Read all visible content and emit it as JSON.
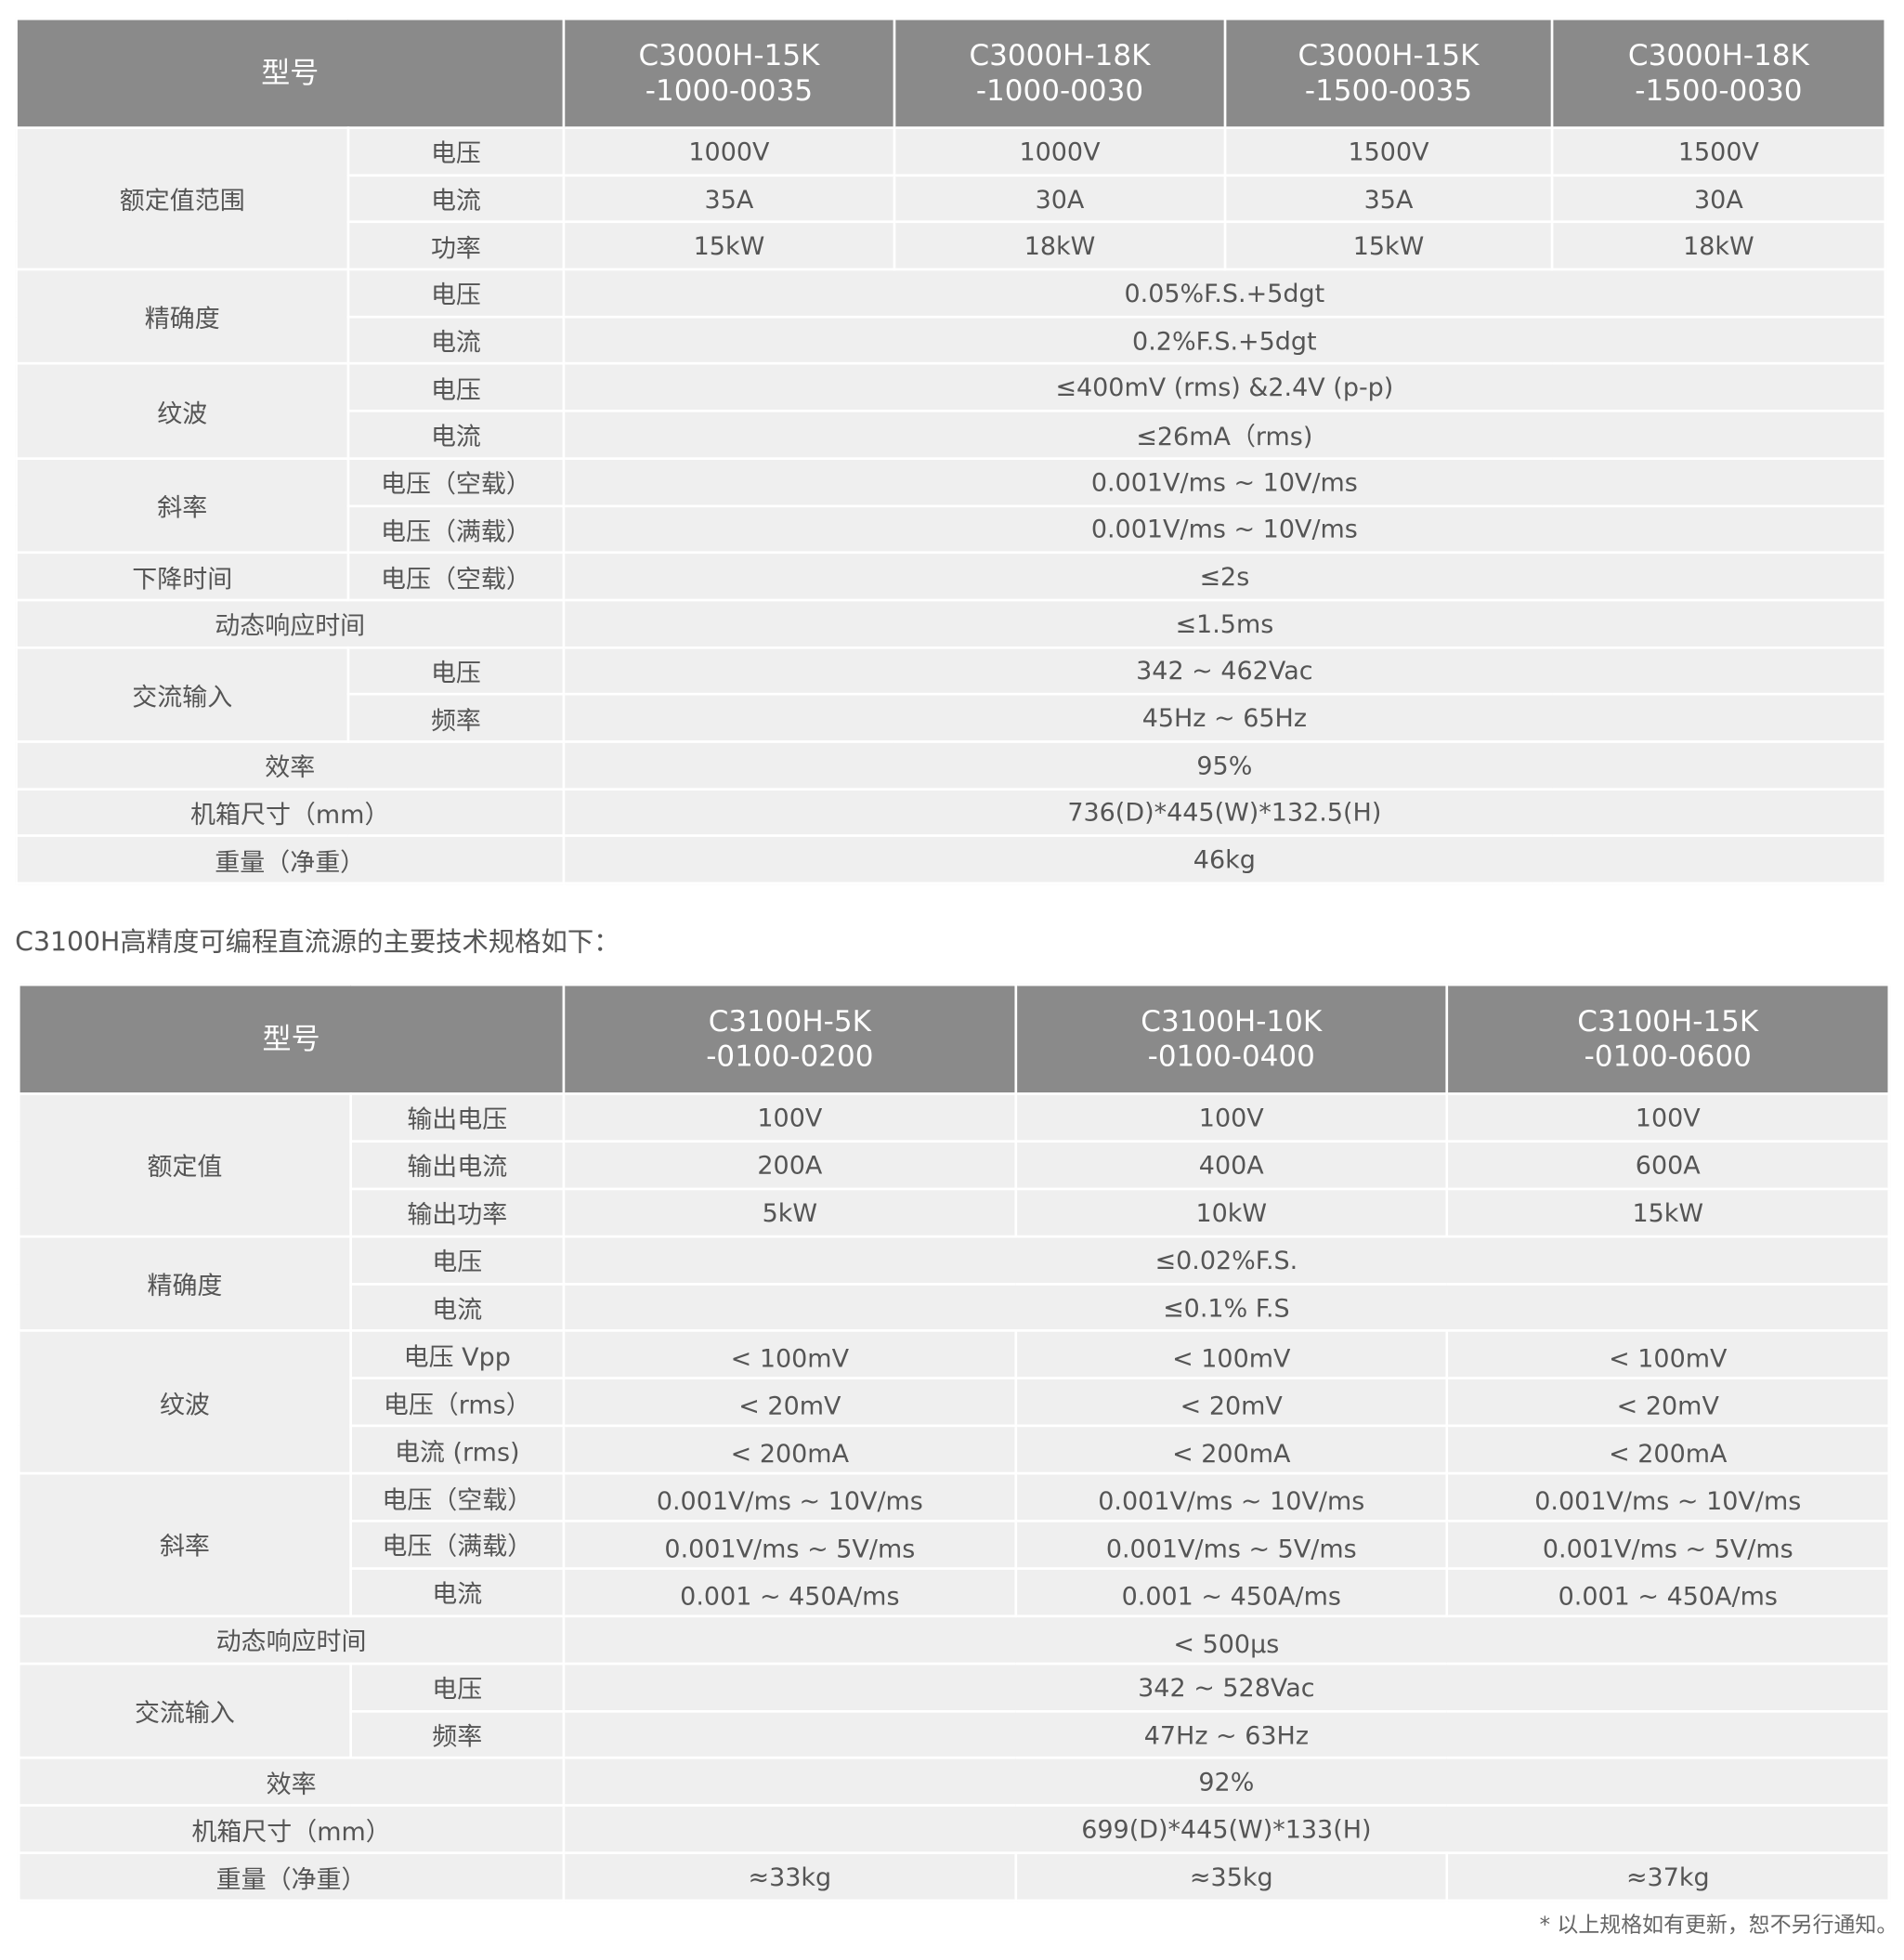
{
  "table1": {
    "header_label": "型号",
    "models": [
      "C3000H-15K\n-1000-0035",
      "C3000H-18K\n-1000-0030",
      "C3000H-15K\n-1500-0035",
      "C3000H-18K\n-1500-0030"
    ],
    "groups": [
      {
        "label": "额定值范围",
        "rows": [
          {
            "sub": "电压",
            "values": [
              "1000V",
              "1000V",
              "1500V",
              "1500V"
            ]
          },
          {
            "sub": "电流",
            "values": [
              "35A",
              "30A",
              "35A",
              "30A"
            ]
          },
          {
            "sub": "功率",
            "values": [
              "15kW",
              "18kW",
              "15kW",
              "18kW"
            ]
          }
        ]
      },
      {
        "label": "精确度",
        "rows": [
          {
            "sub": "电压",
            "value": "0.05%F.S.+5dgt"
          },
          {
            "sub": "电流",
            "value": "0.2%F.S.+5dgt"
          }
        ]
      },
      {
        "label": "纹波",
        "rows": [
          {
            "sub": "电压",
            "value": "≤400mV (rms) &2.4V (p-p)"
          },
          {
            "sub": "电流",
            "value": "≤26mA（rms)"
          }
        ]
      },
      {
        "label": "斜率",
        "rows": [
          {
            "sub": "电压（空载）",
            "value": "0.001V/ms ~ 10V/ms"
          },
          {
            "sub": "电压（满载）",
            "value": "0.001V/ms ~ 10V/ms"
          }
        ]
      },
      {
        "label": "下降时间",
        "rows": [
          {
            "sub": "电压（空载）",
            "value": "≤2s"
          }
        ]
      },
      {
        "label": "动态响应时间",
        "rows": [
          {
            "value": "≤1.5ms"
          }
        ]
      },
      {
        "label": "交流输入",
        "rows": [
          {
            "sub": "电压",
            "value": "342 ~ 462Vac"
          },
          {
            "sub": "频率",
            "value": "45Hz ~ 65Hz"
          }
        ]
      },
      {
        "label": "效率",
        "rows": [
          {
            "value": "95%"
          }
        ]
      },
      {
        "label": "机箱尺寸（mm）",
        "rows": [
          {
            "value": "736(D)*445(W)*132.5(H)"
          }
        ]
      },
      {
        "label": "重量（净重）",
        "rows": [
          {
            "value": "46kg"
          }
        ]
      }
    ]
  },
  "intro": "C3100H高精度可编程直流源的主要技术规格如下：",
  "table2": {
    "header_label": "型号",
    "models": [
      "C3100H-5K\n-0100-0200",
      "C3100H-10K\n-0100-0400",
      "C3100H-15K\n-0100-0600"
    ],
    "groups": [
      {
        "label": "额定值",
        "rows": [
          {
            "sub": "输出电压",
            "values": [
              "100V",
              "100V",
              "100V"
            ]
          },
          {
            "sub": "输出电流",
            "values": [
              "200A",
              "400A",
              "600A"
            ]
          },
          {
            "sub": "输出功率",
            "values": [
              "5kW",
              "10kW",
              "15kW"
            ]
          }
        ]
      },
      {
        "label": "精确度",
        "rows": [
          {
            "sub": "电压",
            "value": "≤0.02%F.S."
          },
          {
            "sub": "电流",
            "value": "≤0.1% F.S"
          }
        ]
      },
      {
        "label": "纹波",
        "rows": [
          {
            "sub": "电压 Vpp",
            "values": [
              "< 100mV",
              "< 100mV",
              "< 100mV"
            ],
            "small": true
          },
          {
            "sub": "电压（rms）",
            "values": [
              "< 20mV",
              "< 20mV",
              "< 20mV"
            ],
            "small": true
          },
          {
            "sub": "电流 (rms)",
            "values": [
              "< 200mA",
              "< 200mA",
              "< 200mA"
            ],
            "small": true
          }
        ]
      },
      {
        "label": "斜率",
        "rows": [
          {
            "sub": "电压（空载）",
            "values": [
              "0.001V/ms ~ 10V/ms",
              "0.001V/ms ~ 10V/ms",
              "0.001V/ms ~ 10V/ms"
            ],
            "small": true
          },
          {
            "sub": "电压（满载）",
            "values": [
              "0.001V/ms ~ 5V/ms",
              "0.001V/ms ~ 5V/ms",
              "0.001V/ms ~ 5V/ms"
            ],
            "small": true
          },
          {
            "sub": "电流",
            "values": [
              "0.001 ~ 450A/ms",
              "0.001 ~ 450A/ms",
              "0.001 ~ 450A/ms"
            ],
            "small": true
          }
        ]
      },
      {
        "label": "动态响应时间",
        "rows": [
          {
            "value": "< 500μs",
            "small": true
          }
        ]
      },
      {
        "label": "交流输入",
        "rows": [
          {
            "sub": "电压",
            "value": "342 ~ 528Vac"
          },
          {
            "sub": "频率",
            "value": "47Hz ~ 63Hz"
          }
        ]
      },
      {
        "label": "效率",
        "rows": [
          {
            "value": "92%"
          }
        ]
      },
      {
        "label": "机箱尺寸（mm）",
        "rows": [
          {
            "value": "699(D)*445(W)*133(H)"
          }
        ]
      },
      {
        "label": "重量（净重）",
        "rows": [
          {
            "values": [
              "≈33kg",
              "≈35kg",
              "≈37kg"
            ]
          }
        ]
      }
    ]
  },
  "note": "* 以上规格如有更新，恕不另行通知。"
}
